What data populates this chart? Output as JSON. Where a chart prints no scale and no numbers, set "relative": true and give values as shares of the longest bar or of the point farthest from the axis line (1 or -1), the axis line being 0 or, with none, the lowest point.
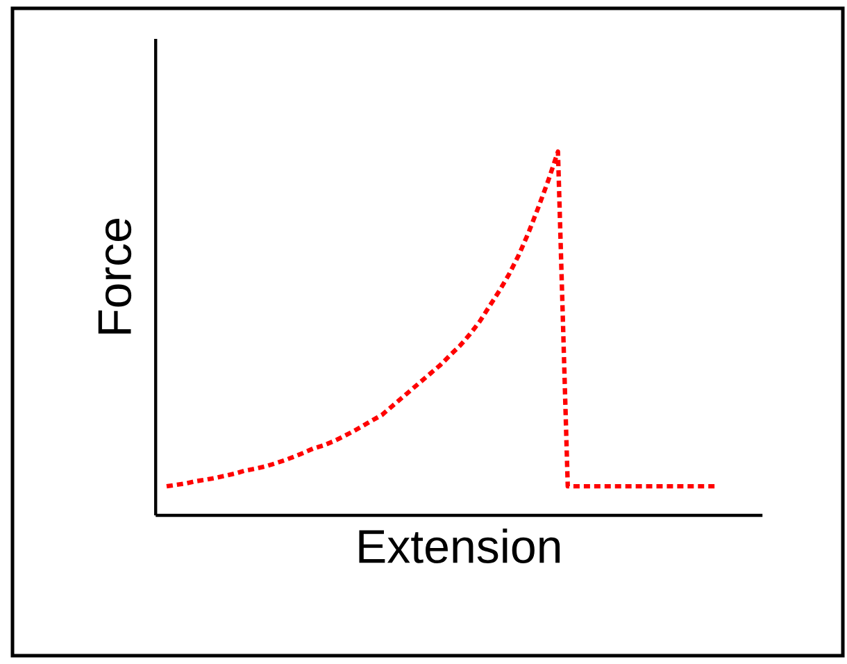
{
  "chart_data": {
    "type": "line",
    "relative": true,
    "xlabel": "Extension",
    "ylabel": "Force",
    "tick_labels": false,
    "marker": "none",
    "line_style": "dotted",
    "categories": [
      null,
      null,
      null,
      null,
      null,
      null,
      null,
      null,
      null,
      null,
      null,
      null,
      null,
      null,
      null,
      null,
      null,
      null,
      null,
      null,
      null,
      null,
      null,
      null,
      null,
      null,
      null,
      null,
      null,
      null,
      null,
      null,
      null,
      null,
      null,
      null,
      null,
      null,
      null,
      null,
      null,
      null,
      null,
      null,
      null,
      null,
      null,
      null,
      null,
      null,
      null,
      null,
      null,
      null,
      null,
      null,
      null
    ],
    "series": [
      {
        "color": "#ff0000",
        "values": [
          0.08,
          0.084,
          0.088,
          0.094,
          0.098,
          0.103,
          0.109,
          0.115,
          0.123,
          0.128,
          0.134,
          0.142,
          0.151,
          0.161,
          0.172,
          0.184,
          0.192,
          0.203,
          0.216,
          0.23,
          0.245,
          0.261,
          0.276,
          0.299,
          0.322,
          0.345,
          0.368,
          0.391,
          0.414,
          0.441,
          0.467,
          0.498,
          0.533,
          0.575,
          0.617,
          0.663,
          0.716,
          0.778,
          0.847,
          0.92,
          1.0,
          0.08,
          0.08,
          0.08,
          0.08,
          0.08,
          0.08,
          0.08,
          0.08,
          0.08,
          0.08,
          0.08,
          0.08,
          0.08,
          0.08,
          0.08,
          0.08
        ]
      }
    ]
  }
}
